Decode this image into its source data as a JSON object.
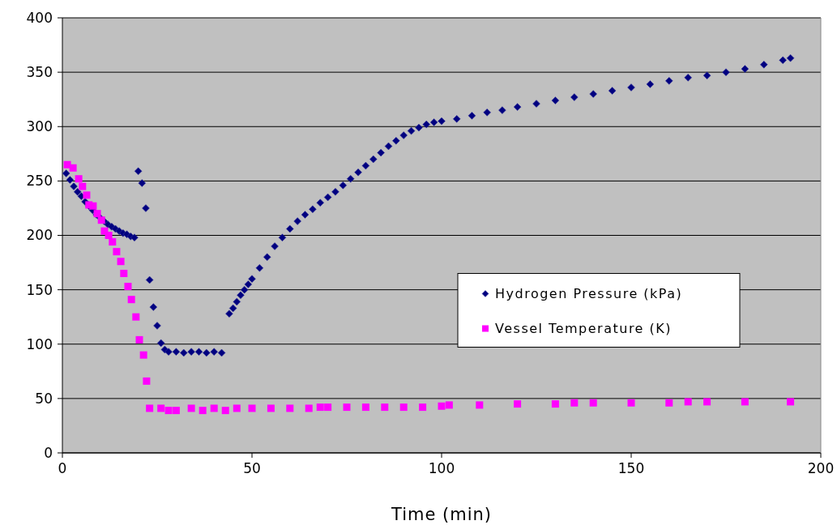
{
  "chart_data": {
    "type": "scatter",
    "xlabel": "Time (min)",
    "xlim": [
      0,
      200
    ],
    "xticks": [
      0,
      50,
      100,
      150,
      200
    ],
    "ylim": [
      0,
      400
    ],
    "yticks": [
      0,
      50,
      100,
      150,
      200,
      250,
      300,
      350,
      400
    ],
    "grid": "y",
    "legend": "right",
    "series": [
      {
        "name": "Hydrogen Pressure (kPa)",
        "color": "#000080",
        "marker": "diamond",
        "x": [
          1,
          2,
          3,
          4,
          5,
          6,
          7,
          8,
          9,
          10,
          11,
          12,
          13,
          14,
          15,
          16,
          17,
          18,
          19,
          20,
          21,
          22,
          23,
          24,
          25,
          26,
          27,
          28,
          30,
          32,
          34,
          36,
          38,
          40,
          42,
          44,
          45,
          46,
          47,
          48,
          49,
          50,
          52,
          54,
          56,
          58,
          60,
          62,
          64,
          66,
          68,
          70,
          72,
          74,
          76,
          78,
          80,
          82,
          84,
          86,
          88,
          90,
          92,
          94,
          96,
          98,
          100,
          104,
          108,
          112,
          116,
          120,
          125,
          130,
          135,
          140,
          145,
          150,
          155,
          160,
          165,
          170,
          175,
          180,
          185,
          190,
          192
        ],
        "values": [
          257,
          251,
          245,
          240,
          236,
          231,
          227,
          223,
          219,
          216,
          213,
          210,
          208,
          206,
          204,
          202,
          201,
          199,
          198,
          259,
          248,
          225,
          159,
          134,
          117,
          101,
          95,
          93,
          93,
          92,
          93,
          93,
          92,
          93,
          92,
          128,
          133,
          139,
          145,
          150,
          155,
          160,
          170,
          180,
          190,
          198,
          206,
          213,
          219,
          224,
          230,
          235,
          240,
          246,
          252,
          258,
          264,
          270,
          276,
          282,
          287,
          292,
          296,
          299,
          302,
          304,
          305,
          307,
          310,
          313,
          315,
          318,
          321,
          324,
          327,
          330,
          333,
          336,
          339,
          342,
          345,
          347,
          350,
          353,
          357,
          361,
          363
        ]
      },
      {
        "name": "Vessel Temperature (K)",
        "color": "#ff00ff",
        "marker": "square",
        "x": [
          1.3,
          2.8,
          4.3,
          5.3,
          6.4,
          7,
          8.1,
          9.2,
          10.3,
          11.1,
          12.2,
          13.2,
          14.3,
          15.4,
          16.2,
          17.3,
          18.2,
          19.4,
          20.3,
          21.4,
          22.2,
          23,
          26,
          28,
          30,
          34,
          37,
          40,
          43,
          46,
          50,
          55,
          60,
          65,
          68,
          70,
          75,
          80,
          85,
          90,
          95,
          100,
          102,
          110,
          120,
          130,
          135,
          140,
          150,
          160,
          165,
          170,
          180,
          192
        ],
        "values": [
          265,
          262,
          252,
          245,
          237,
          228,
          227,
          220,
          214,
          204,
          200,
          194,
          185,
          176,
          165,
          153,
          141,
          125,
          104,
          90,
          66,
          41,
          41,
          39,
          39,
          41,
          39,
          41,
          39,
          41,
          41,
          41,
          41,
          41,
          42,
          42,
          42,
          42,
          42,
          42,
          42,
          43,
          44,
          44,
          45,
          45,
          46,
          46,
          46,
          46,
          47,
          47,
          47,
          47
        ]
      }
    ]
  }
}
